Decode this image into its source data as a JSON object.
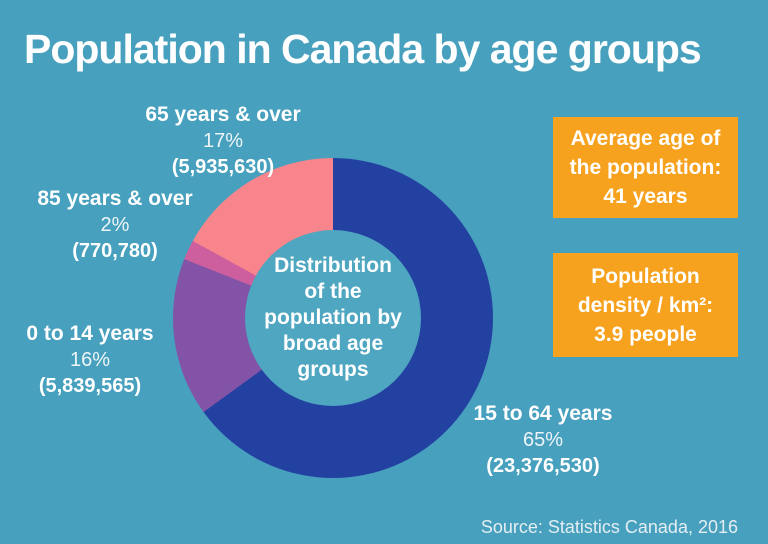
{
  "title": "Population in Canada by age groups",
  "source": "Source: Statistics Canada, 2016",
  "center": {
    "lines": [
      "Distribution",
      "of the",
      "population by",
      "broad age",
      "groups"
    ]
  },
  "labels": {
    "l65": {
      "name": "65 years & over",
      "percent": "17%",
      "value": "(5,935,630)"
    },
    "l85": {
      "name": "85 years & over",
      "percent": "2%",
      "value": "(770,780)"
    },
    "l0": {
      "name": "0 to 14 years",
      "percent": "16%",
      "value": "(5,839,565)"
    },
    "l15": {
      "name": "15 to 64 years",
      "percent": "65%",
      "value": "(23,376,530)"
    }
  },
  "stat_boxes": [
    {
      "name": "average-age",
      "lines": [
        "Average age of",
        "the population:",
        "41 years"
      ]
    },
    {
      "name": "population-density",
      "lines": [
        "Population",
        "density / km²:",
        "3.9 people"
      ]
    }
  ],
  "colors": {
    "background": "#47a0bd",
    "center_circle": "#4fa6c1",
    "stat_box_orange": "#f6a21e",
    "text": "#ffffff",
    "slice_15_to_64": "#2341a1",
    "slice_0_to_14": "#8253a7",
    "slice_85_over": "#ce5f9e",
    "slice_65_over": "#f8858c"
  },
  "chart_data": {
    "type": "pie",
    "subtype": "donut",
    "title": "Distribution of the population by broad age groups",
    "start_angle_deg": 0,
    "direction": "clockwise",
    "slices": [
      {
        "label": "15 to 64 years",
        "percent": 65,
        "population": 23376530,
        "color": "#2341a1"
      },
      {
        "label": "0 to 14 years",
        "percent": 16,
        "population": 5839565,
        "color": "#8253a7"
      },
      {
        "label": "85 years & over",
        "percent": 2,
        "population": 770780,
        "color": "#ce5f9e"
      },
      {
        "label": "65 years & over",
        "percent": 17,
        "population": 5935630,
        "color": "#f8858c"
      }
    ]
  }
}
